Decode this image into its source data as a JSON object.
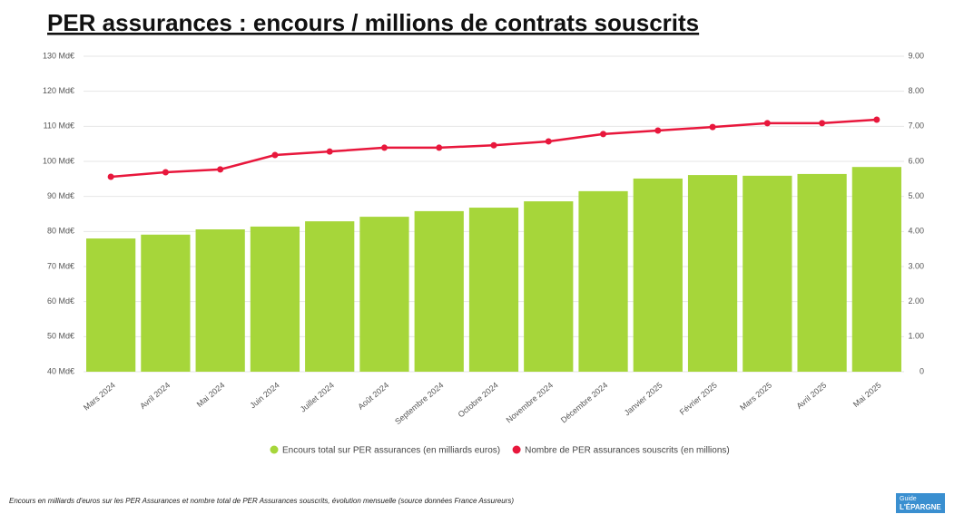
{
  "chart_data": {
    "type": "bar-line",
    "title": "PER assurances : encours / millions de contrats souscrits",
    "categories": [
      "Mars 2024",
      "Avril 2024",
      "Mai 2024",
      "Juin 2024",
      "Juillet 2024",
      "Août 2024",
      "Septembre 2024",
      "Octobre 2024",
      "Novembre 2024",
      "Décembre 2024",
      "Janvier 2025",
      "Février 2025",
      "Mars 2025",
      "Avril 2025",
      "Mai 2025"
    ],
    "series": [
      {
        "name": "Encours total sur PER assurances (en milliards euros)",
        "color": "#a6d63a",
        "type": "bar",
        "values": [
          78.0,
          79.1,
          80.6,
          81.4,
          82.9,
          84.2,
          85.8,
          86.8,
          88.6,
          91.5,
          95.1,
          96.1,
          95.9,
          96.4,
          98.4
        ]
      },
      {
        "name": "Nombre de PER assurances souscrits (en millions)",
        "color": "#e8173c",
        "type": "line",
        "axis": "y2",
        "values": [
          5.56,
          5.69,
          5.77,
          6.18,
          6.28,
          6.39,
          6.39,
          6.46,
          6.57,
          6.78,
          6.88,
          6.98,
          7.09,
          7.09,
          7.19
        ]
      }
    ],
    "ylim": [
      40,
      130
    ],
    "yticks": [
      {
        "value": 40,
        "label": "40 Md€"
      },
      {
        "value": 50,
        "label": "50 Md€"
      },
      {
        "value": 60,
        "label": "60 Md€"
      },
      {
        "value": 70,
        "label": "70 Md€"
      },
      {
        "value": 80,
        "label": "80 Md€"
      },
      {
        "value": 90,
        "label": "90 Md€"
      },
      {
        "value": 100,
        "label": "100 Md€"
      },
      {
        "value": 110,
        "label": "110 Md€"
      },
      {
        "value": 120,
        "label": "120 Md€"
      },
      {
        "value": 130,
        "label": "130 Md€"
      }
    ],
    "y2lim": [
      0,
      9
    ],
    "y2ticks": [
      0,
      {
        "value": 1,
        "label": "1.00"
      },
      {
        "value": 2,
        "label": "2.00"
      },
      {
        "value": 3,
        "label": "3.00"
      },
      {
        "value": 4,
        "label": "4.00"
      },
      {
        "value": 5,
        "label": "5.00"
      },
      {
        "value": 6,
        "label": "6.00"
      },
      {
        "value": 7,
        "label": "7.00"
      },
      {
        "value": 8,
        "label": "8.00"
      },
      {
        "value": 9,
        "label": "9.00"
      }
    ],
    "grid": true,
    "legend": "bottom",
    "footnote": "Encours en milliards d'euros sur les PER Assurances et nombre total de PER Assurances souscrits, évolution mensuelle (source données France Assureurs)",
    "logo": {
      "line1": "Guide",
      "line2": "L'ÉPARGNE"
    }
  }
}
